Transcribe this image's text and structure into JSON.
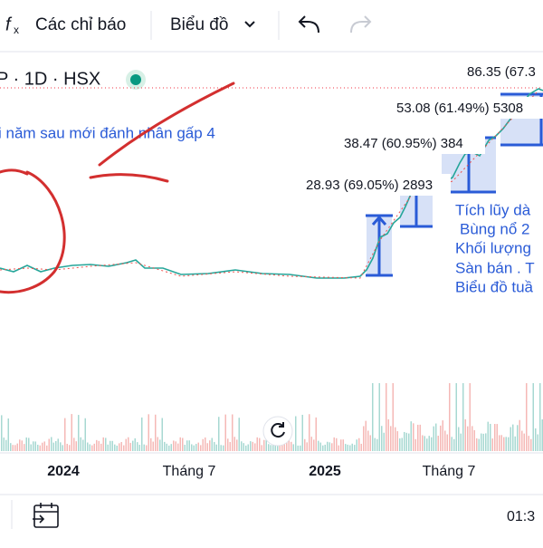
{
  "toolbar": {
    "indicators": "Các chỉ báo",
    "chart": "Biểu đồ"
  },
  "symbol": "P · 1D · HSX",
  "price_labels": [
    "86.35 (67.3",
    "53.08 (61.49%) 5308",
    "38.47 (60.95%) 384",
    "28.93 (69.05%) 2893"
  ],
  "annotations": {
    "top_note": "i năm sau mới đánh nhân gấp 4",
    "side_notes": [
      "Tích lũy dà",
      " Bùng nổ 2",
      "Khối lượng",
      "Sàn bán . T",
      "Biểu đồ tuầ"
    ]
  },
  "time_axis": [
    "2024",
    "Tháng 7",
    "2025",
    "Tháng 7"
  ],
  "status": {
    "time": "01:3"
  }
}
